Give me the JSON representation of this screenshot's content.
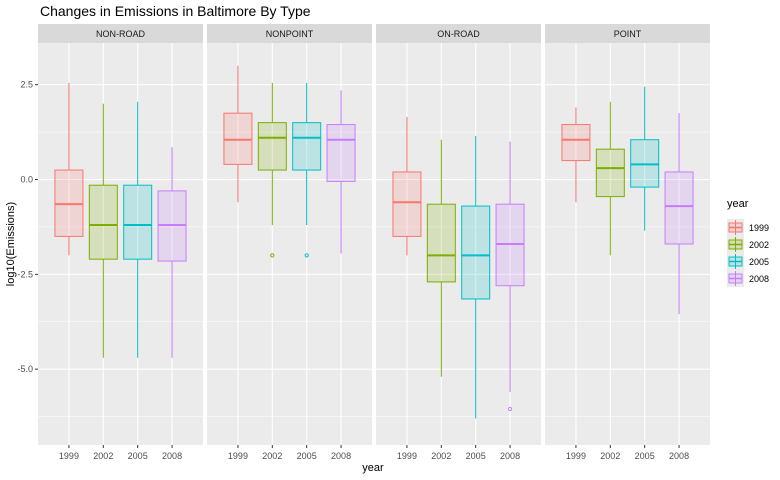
{
  "chart_data": {
    "type": "box",
    "title": "Changes in Emissions in Baltimore By Type",
    "xlabel": "year",
    "ylabel": "log10(Emissions)",
    "ylim": [
      -7.0,
      3.6
    ],
    "yticks": [
      -5.0,
      -2.5,
      0.0,
      2.5
    ],
    "ytick_labels": [
      "-5.0",
      "-2.5",
      "0.0",
      "2.5"
    ],
    "categories": [
      "1999",
      "2002",
      "2005",
      "2008"
    ],
    "legend": {
      "title": "year",
      "position": "right",
      "entries": [
        "1999",
        "2002",
        "2005",
        "2008"
      ]
    },
    "series_colors": [
      "#F8766D",
      "#7CAE00",
      "#00BFC4",
      "#C77CFF"
    ],
    "panel_background": "#EBEBEB",
    "strip_background": "#D9D9D9",
    "grid": true,
    "panels": [
      {
        "name": "NON-ROAD",
        "boxes": [
          {
            "year": "1999",
            "whisker_low": -2.0,
            "q1": -1.5,
            "median": -0.65,
            "q3": 0.25,
            "whisker_high": 2.55,
            "outliers": []
          },
          {
            "year": "2002",
            "whisker_low": -4.7,
            "q1": -2.1,
            "median": -1.2,
            "q3": -0.15,
            "whisker_high": 2.0,
            "outliers": []
          },
          {
            "year": "2005",
            "whisker_low": -4.7,
            "q1": -2.1,
            "median": -1.2,
            "q3": -0.15,
            "whisker_high": 2.05,
            "outliers": []
          },
          {
            "year": "2008",
            "whisker_low": -4.7,
            "q1": -2.15,
            "median": -1.2,
            "q3": -0.3,
            "whisker_high": 0.85,
            "outliers": []
          }
        ]
      },
      {
        "name": "NONPOINT",
        "boxes": [
          {
            "year": "1999",
            "whisker_low": -0.6,
            "q1": 0.4,
            "median": 1.05,
            "q3": 1.75,
            "whisker_high": 3.0,
            "outliers": []
          },
          {
            "year": "2002",
            "whisker_low": -1.2,
            "q1": 0.25,
            "median": 1.1,
            "q3": 1.5,
            "whisker_high": 2.55,
            "outliers": [
              -2.0
            ]
          },
          {
            "year": "2005",
            "whisker_low": -1.2,
            "q1": 0.25,
            "median": 1.1,
            "q3": 1.5,
            "whisker_high": 2.55,
            "outliers": [
              -2.0
            ]
          },
          {
            "year": "2008",
            "whisker_low": -1.95,
            "q1": -0.05,
            "median": 1.05,
            "q3": 1.45,
            "whisker_high": 2.35,
            "outliers": []
          }
        ]
      },
      {
        "name": "ON-ROAD",
        "boxes": [
          {
            "year": "1999",
            "whisker_low": -2.0,
            "q1": -1.5,
            "median": -0.6,
            "q3": 0.2,
            "whisker_high": 1.65,
            "outliers": []
          },
          {
            "year": "2002",
            "whisker_low": -5.2,
            "q1": -2.7,
            "median": -2.0,
            "q3": -0.65,
            "whisker_high": 1.05,
            "outliers": []
          },
          {
            "year": "2005",
            "whisker_low": -6.3,
            "q1": -3.15,
            "median": -2.0,
            "q3": -0.7,
            "whisker_high": 1.15,
            "outliers": []
          },
          {
            "year": "2008",
            "whisker_low": -5.6,
            "q1": -2.8,
            "median": -1.7,
            "q3": -0.65,
            "whisker_high": 1.0,
            "outliers": [
              -6.05
            ]
          }
        ]
      },
      {
        "name": "POINT",
        "boxes": [
          {
            "year": "1999",
            "whisker_low": -0.6,
            "q1": 0.5,
            "median": 1.05,
            "q3": 1.45,
            "whisker_high": 1.9,
            "outliers": []
          },
          {
            "year": "2002",
            "whisker_low": -2.0,
            "q1": -0.45,
            "median": 0.3,
            "q3": 0.8,
            "whisker_high": 2.05,
            "outliers": []
          },
          {
            "year": "2005",
            "whisker_low": -1.35,
            "q1": -0.2,
            "median": 0.4,
            "q3": 1.05,
            "whisker_high": 2.45,
            "outliers": []
          },
          {
            "year": "2008",
            "whisker_low": -3.55,
            "q1": -1.7,
            "median": -0.7,
            "q3": 0.2,
            "whisker_high": 1.75,
            "outliers": []
          }
        ]
      }
    ]
  }
}
